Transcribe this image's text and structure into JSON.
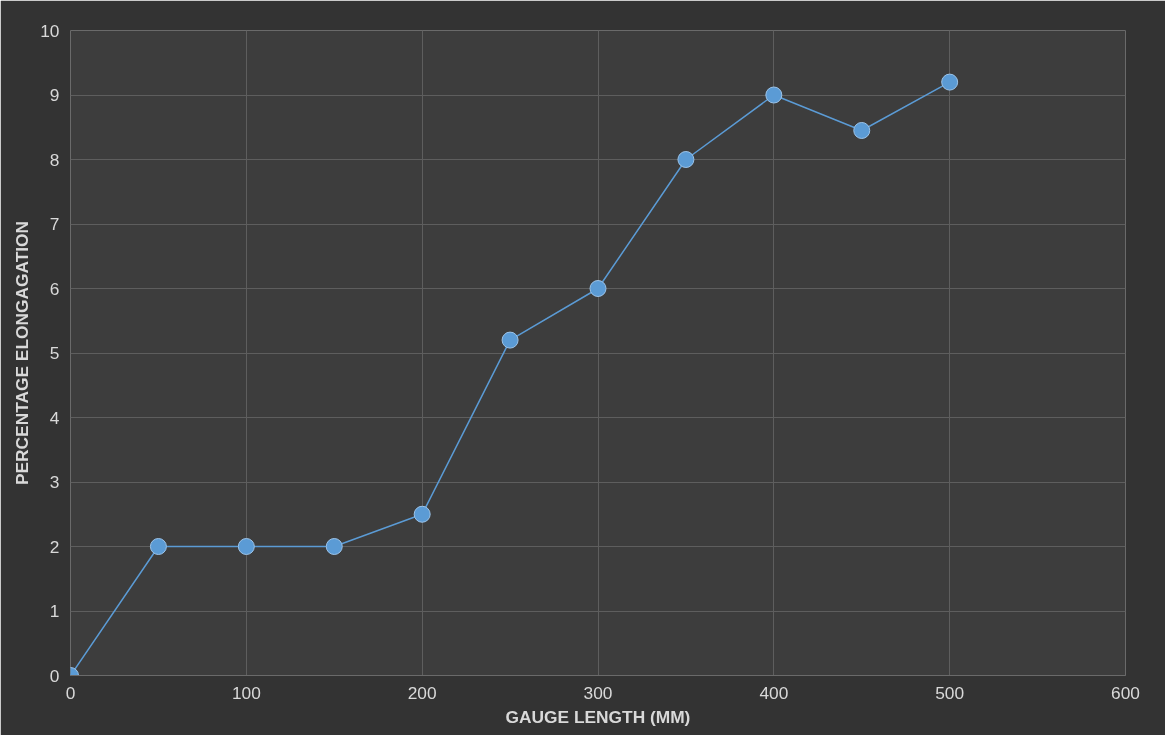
{
  "chart_data": {
    "type": "line",
    "xlabel": "GAUGE LENGTH (MM)",
    "ylabel": "PERCENTAGE ELONGAGATION",
    "x": [
      0,
      50,
      100,
      150,
      200,
      250,
      300,
      350,
      400,
      450,
      500
    ],
    "series": [
      {
        "color": "#5b9bd5",
        "values": [
          0,
          2,
          2,
          2,
          2.5,
          5.2,
          6,
          8,
          9,
          8.45,
          9.2
        ]
      }
    ],
    "xlim": [
      0,
      600
    ],
    "xticks": [
      0,
      100,
      200,
      300,
      400,
      500,
      600
    ],
    "ylim": [
      0,
      10
    ],
    "yticks": [
      0,
      1,
      2,
      3,
      4,
      5,
      6,
      7,
      8,
      9,
      10
    ],
    "grid": true,
    "marker": "circle",
    "line_style": "solid"
  }
}
